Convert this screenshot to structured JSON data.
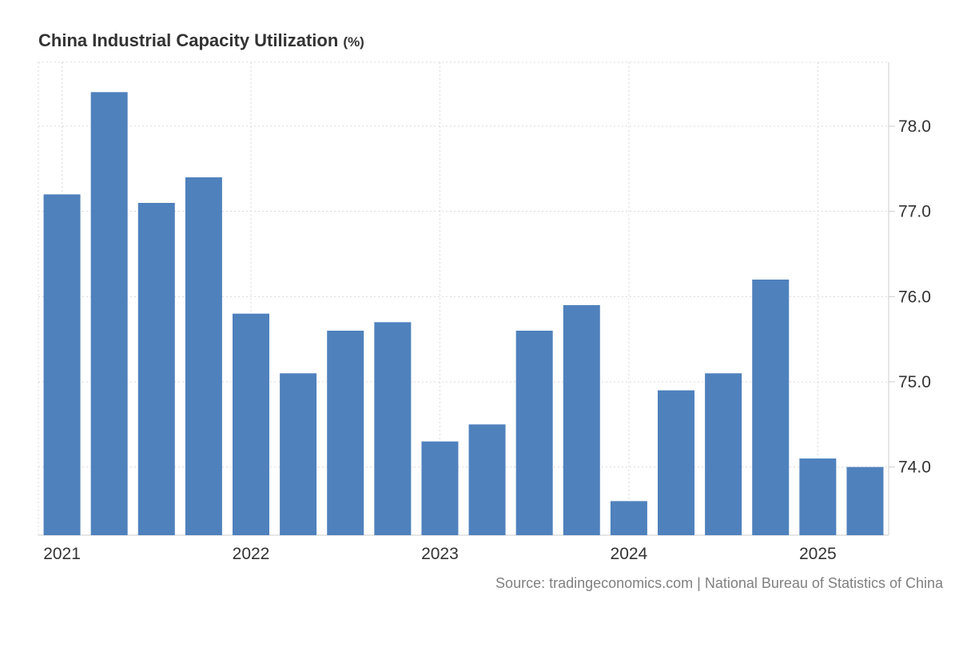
{
  "colors": {
    "bar": "#4f81bd",
    "grid": "#d9d9d9",
    "axis": "#cccccc",
    "text": "#333333",
    "source": "#808080"
  },
  "chart_data": {
    "type": "bar",
    "title": "China Industrial Capacity Utilization",
    "unit": "(%)",
    "categories": [
      "Q1 2021",
      "Q2 2021",
      "Q3 2021",
      "Q4 2021",
      "Q1 2022",
      "Q2 2022",
      "Q3 2022",
      "Q4 2022",
      "Q1 2023",
      "Q2 2023",
      "Q3 2023",
      "Q4 2023",
      "Q1 2024",
      "Q2 2024",
      "Q3 2024",
      "Q4 2024",
      "Q1 2025",
      "Q2 2025"
    ],
    "values": [
      77.2,
      78.4,
      77.1,
      77.4,
      75.8,
      75.1,
      75.6,
      75.7,
      74.3,
      74.5,
      75.6,
      75.9,
      73.6,
      74.9,
      75.1,
      76.2,
      74.1,
      74.0
    ],
    "ylim": [
      73.2,
      78.75
    ],
    "yticks": [
      74.0,
      75.0,
      76.0,
      77.0,
      78.0
    ],
    "ytick_labels": [
      "74.0",
      "75.0",
      "76.0",
      "77.0",
      "78.0"
    ],
    "xticks": [
      {
        "label": "2021",
        "index": 0
      },
      {
        "label": "2022",
        "index": 4
      },
      {
        "label": "2023",
        "index": 8
      },
      {
        "label": "2024",
        "index": 12
      },
      {
        "label": "2025",
        "index": 16
      }
    ],
    "grid": true,
    "xlabel": "",
    "ylabel": "",
    "source": "Source: tradingeconomics.com | National Bureau of Statistics of China"
  }
}
